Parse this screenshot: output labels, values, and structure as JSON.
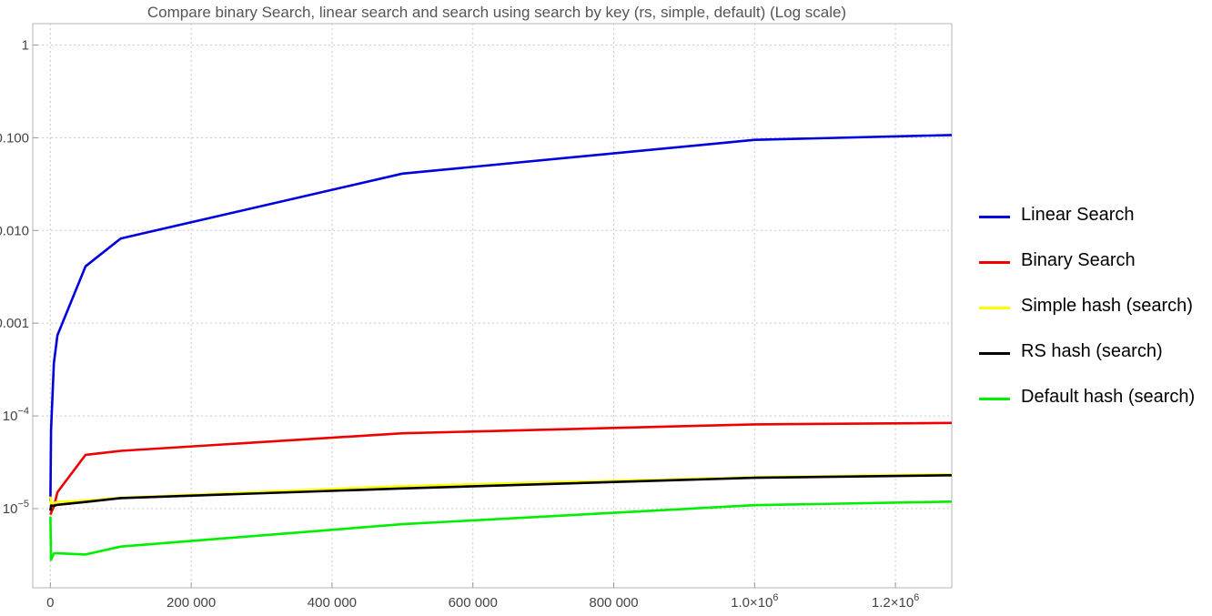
{
  "chart_data": {
    "type": "line",
    "title": "Compare binary Search, linear search and search using search by key (rs, simple, default) (Log scale)",
    "xlabel": "",
    "ylabel": "",
    "log_y": true,
    "xlim": [
      -25000,
      1280000
    ],
    "ylim": [
      1.4e-06,
      1.7
    ],
    "grid": true,
    "legend_position": "right",
    "x_ticks": [
      {
        "value": 0,
        "label": "0"
      },
      {
        "value": 200000,
        "label": "200 000"
      },
      {
        "value": 400000,
        "label": "400 000"
      },
      {
        "value": 600000,
        "label": "600 000"
      },
      {
        "value": 800000,
        "label": "800 000"
      },
      {
        "value": 1000000,
        "label": "1.0×10",
        "exp": "6"
      },
      {
        "value": 1200000,
        "label": "1.2×10",
        "exp": "6"
      }
    ],
    "y_ticks": [
      {
        "value": 1,
        "label": "1"
      },
      {
        "value": 0.1,
        "label": "0.100"
      },
      {
        "value": 0.01,
        "label": "0.010"
      },
      {
        "value": 0.001,
        "label": "0.001"
      },
      {
        "value": 0.0001,
        "label": "10",
        "exp": "−4"
      },
      {
        "value": 1e-05,
        "label": "10",
        "exp": "−5"
      }
    ],
    "series": [
      {
        "name": "Linear Search",
        "color": "#0000dd",
        "x": [
          100,
          1000,
          5000,
          10000,
          50000,
          100000,
          500000,
          1000000,
          1280000
        ],
        "y": [
          1.2e-05,
          7e-05,
          0.00037,
          0.00074,
          0.0041,
          0.0082,
          0.041,
          0.095,
          0.107
        ]
      },
      {
        "name": "Binary Search",
        "color": "#ee0000",
        "x": [
          100,
          1000,
          5000,
          10000,
          50000,
          100000,
          500000,
          1000000,
          1280000
        ],
        "y": [
          8.6e-06,
          9e-06,
          1.05e-05,
          1.5e-05,
          3.8e-05,
          4.2e-05,
          6.5e-05,
          8.1e-05,
          8.4e-05
        ]
      },
      {
        "name": "Simple hash (search)",
        "color": "#ffff00",
        "x": [
          100,
          1000,
          5000,
          10000,
          50000,
          100000,
          500000,
          1000000,
          1280000
        ],
        "y": [
          1.35e-05,
          1.12e-05,
          1.15e-05,
          1.18e-05,
          1.22e-05,
          1.31e-05,
          1.75e-05,
          2.18e-05,
          2.35e-05
        ]
      },
      {
        "name": "RS hash (search)",
        "color": "#000000",
        "x": [
          100,
          1000,
          5000,
          10000,
          50000,
          100000,
          500000,
          1000000,
          1280000
        ],
        "y": [
          9.5e-06,
          1.08e-05,
          1.07e-05,
          1.1e-05,
          1.18e-05,
          1.3e-05,
          1.65e-05,
          2.15e-05,
          2.29e-05
        ]
      },
      {
        "name": "Default hash (search)",
        "color": "#00ee00",
        "x": [
          100,
          1000,
          5000,
          10000,
          50000,
          100000,
          500000,
          1000000,
          1280000
        ],
        "y": [
          8.2e-06,
          2.8e-06,
          3.3e-06,
          3.3e-06,
          3.2e-06,
          3.9e-06,
          6.8e-06,
          1.09e-05,
          1.19e-05
        ]
      }
    ]
  }
}
